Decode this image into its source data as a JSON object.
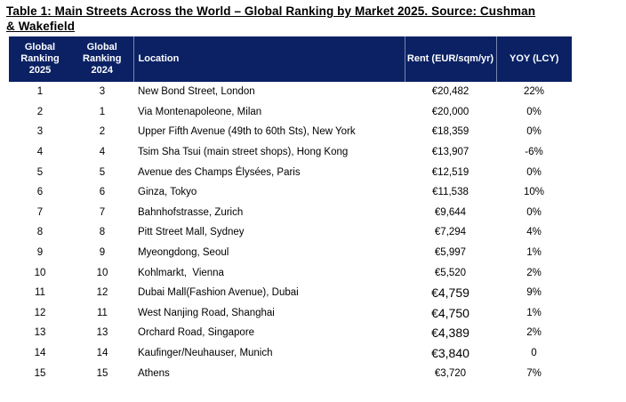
{
  "title": {
    "line1": "Table 1: Main Streets Across the World – Global Ranking by Market 2025. Source: Cushman",
    "line2": "& Wakefield"
  },
  "table": {
    "headers": [
      "Global Ranking 2025",
      "Global Ranking 2024",
      "Location",
      "Rent (EUR/sqm/yr)",
      "YOY (LCY)"
    ],
    "rows": [
      {
        "rank_2025": "1",
        "rank_2024": "3",
        "location": "New Bond Street, London",
        "rent": "€20,482",
        "yoy": "22%"
      },
      {
        "rank_2025": "2",
        "rank_2024": "1",
        "location": "Via Montenapoleone, Milan",
        "rent": "€20,000",
        "yoy": "0%"
      },
      {
        "rank_2025": "3",
        "rank_2024": "2",
        "location": "Upper Fifth Avenue (49th to 60th Sts), New York",
        "rent": "€18,359",
        "yoy": "0%"
      },
      {
        "rank_2025": "4",
        "rank_2024": "4",
        "location": "Tsim Sha Tsui (main street shops), Hong Kong",
        "rent": "€13,907",
        "yoy": "-6%"
      },
      {
        "rank_2025": "5",
        "rank_2024": "5",
        "location": "Avenue des Champs Élysées, Paris",
        "rent": "€12,519",
        "yoy": "0%"
      },
      {
        "rank_2025": "6",
        "rank_2024": "6",
        "location": "Ginza, Tokyo",
        "rent": "€11,538",
        "yoy": "10%"
      },
      {
        "rank_2025": "7",
        "rank_2024": "7",
        "location": "Bahnhofstrasse, Zurich",
        "rent": "€9,644",
        "yoy": "0%"
      },
      {
        "rank_2025": "8",
        "rank_2024": "8",
        "location": "Pitt Street Mall, Sydney",
        "rent": "€7,294",
        "yoy": "4%"
      },
      {
        "rank_2025": "9",
        "rank_2024": "9",
        "location": "Myeongdong, Seoul",
        "rent": "€5,997",
        "yoy": "1%"
      },
      {
        "rank_2025": "10",
        "rank_2024": "10",
        "location": "Kohlmarkt,  Vienna",
        "rent": "€5,520",
        "yoy": "2%"
      },
      {
        "rank_2025": "11",
        "rank_2024": "12",
        "location": "Dubai Mall(Fashion Avenue), Dubai",
        "rent": "€4,759",
        "yoy": "9%"
      },
      {
        "rank_2025": "12",
        "rank_2024": "11",
        "location": "West Nanjing Road, Shanghai",
        "rent": "€4,750",
        "yoy": "1%"
      },
      {
        "rank_2025": "13",
        "rank_2024": "13",
        "location": "Orchard Road, Singapore",
        "rent": "€4,389",
        "yoy": "2%"
      },
      {
        "rank_2025": "14",
        "rank_2024": "14",
        "location": "Kaufinger/Neuhauser, Munich",
        "rent": "€3,840",
        "yoy": "0"
      },
      {
        "rank_2025": "15",
        "rank_2024": "15",
        "location": "Athens",
        "rent": "€3,720",
        "yoy": "7%"
      }
    ]
  },
  "colors": {
    "header_bg": "#0b2164",
    "header_text": "#ffffff",
    "body_text": "#000000",
    "header_divider": "rgba(255,255,255,0.45)",
    "page_bg": "#ffffff"
  }
}
